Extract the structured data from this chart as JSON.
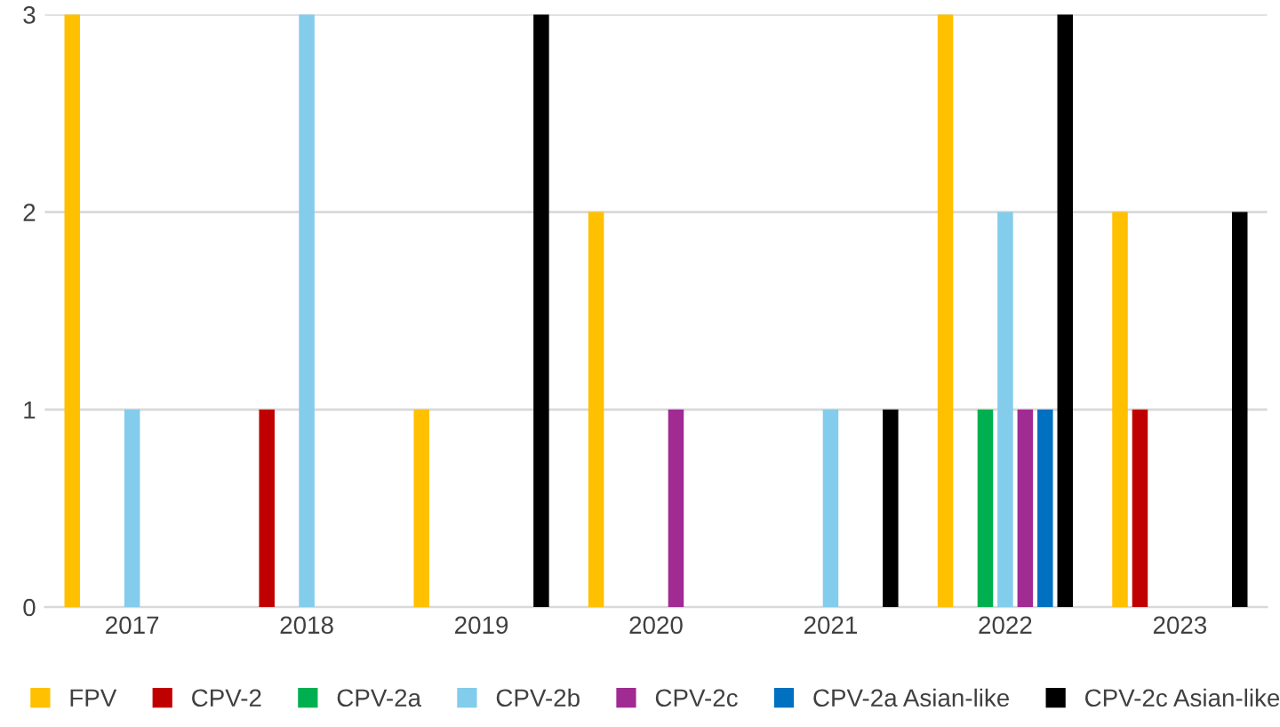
{
  "chart_data": {
    "type": "bar",
    "categories": [
      "2017",
      "2018",
      "2019",
      "2020",
      "2021",
      "2022",
      "2023"
    ],
    "series": [
      {
        "name": "FPV",
        "color": "#ffc000",
        "values": [
          3,
          0,
          1,
          2,
          0,
          3,
          2
        ]
      },
      {
        "name": "CPV-2",
        "color": "#c00000",
        "values": [
          0,
          1,
          0,
          0,
          0,
          0,
          1
        ]
      },
      {
        "name": "CPV-2a",
        "color": "#00b050",
        "values": [
          0,
          0,
          0,
          0,
          0,
          1,
          0
        ]
      },
      {
        "name": "CPV-2b",
        "color": "#83cceb",
        "values": [
          1,
          3,
          0,
          0,
          1,
          2,
          0
        ]
      },
      {
        "name": "CPV-2c",
        "color": "#a02b93",
        "values": [
          0,
          0,
          0,
          1,
          0,
          1,
          0
        ]
      },
      {
        "name": "CPV-2a Asian-like",
        "color": "#0070c0",
        "values": [
          0,
          0,
          0,
          0,
          0,
          1,
          0
        ]
      },
      {
        "name": "CPV-2c Asian-like",
        "color": "#000000",
        "values": [
          0,
          0,
          3,
          0,
          1,
          3,
          2
        ]
      }
    ],
    "ylim": [
      0,
      3
    ],
    "yticks": [
      0,
      1,
      2,
      3
    ],
    "grid": "y",
    "legend": "bottom"
  }
}
